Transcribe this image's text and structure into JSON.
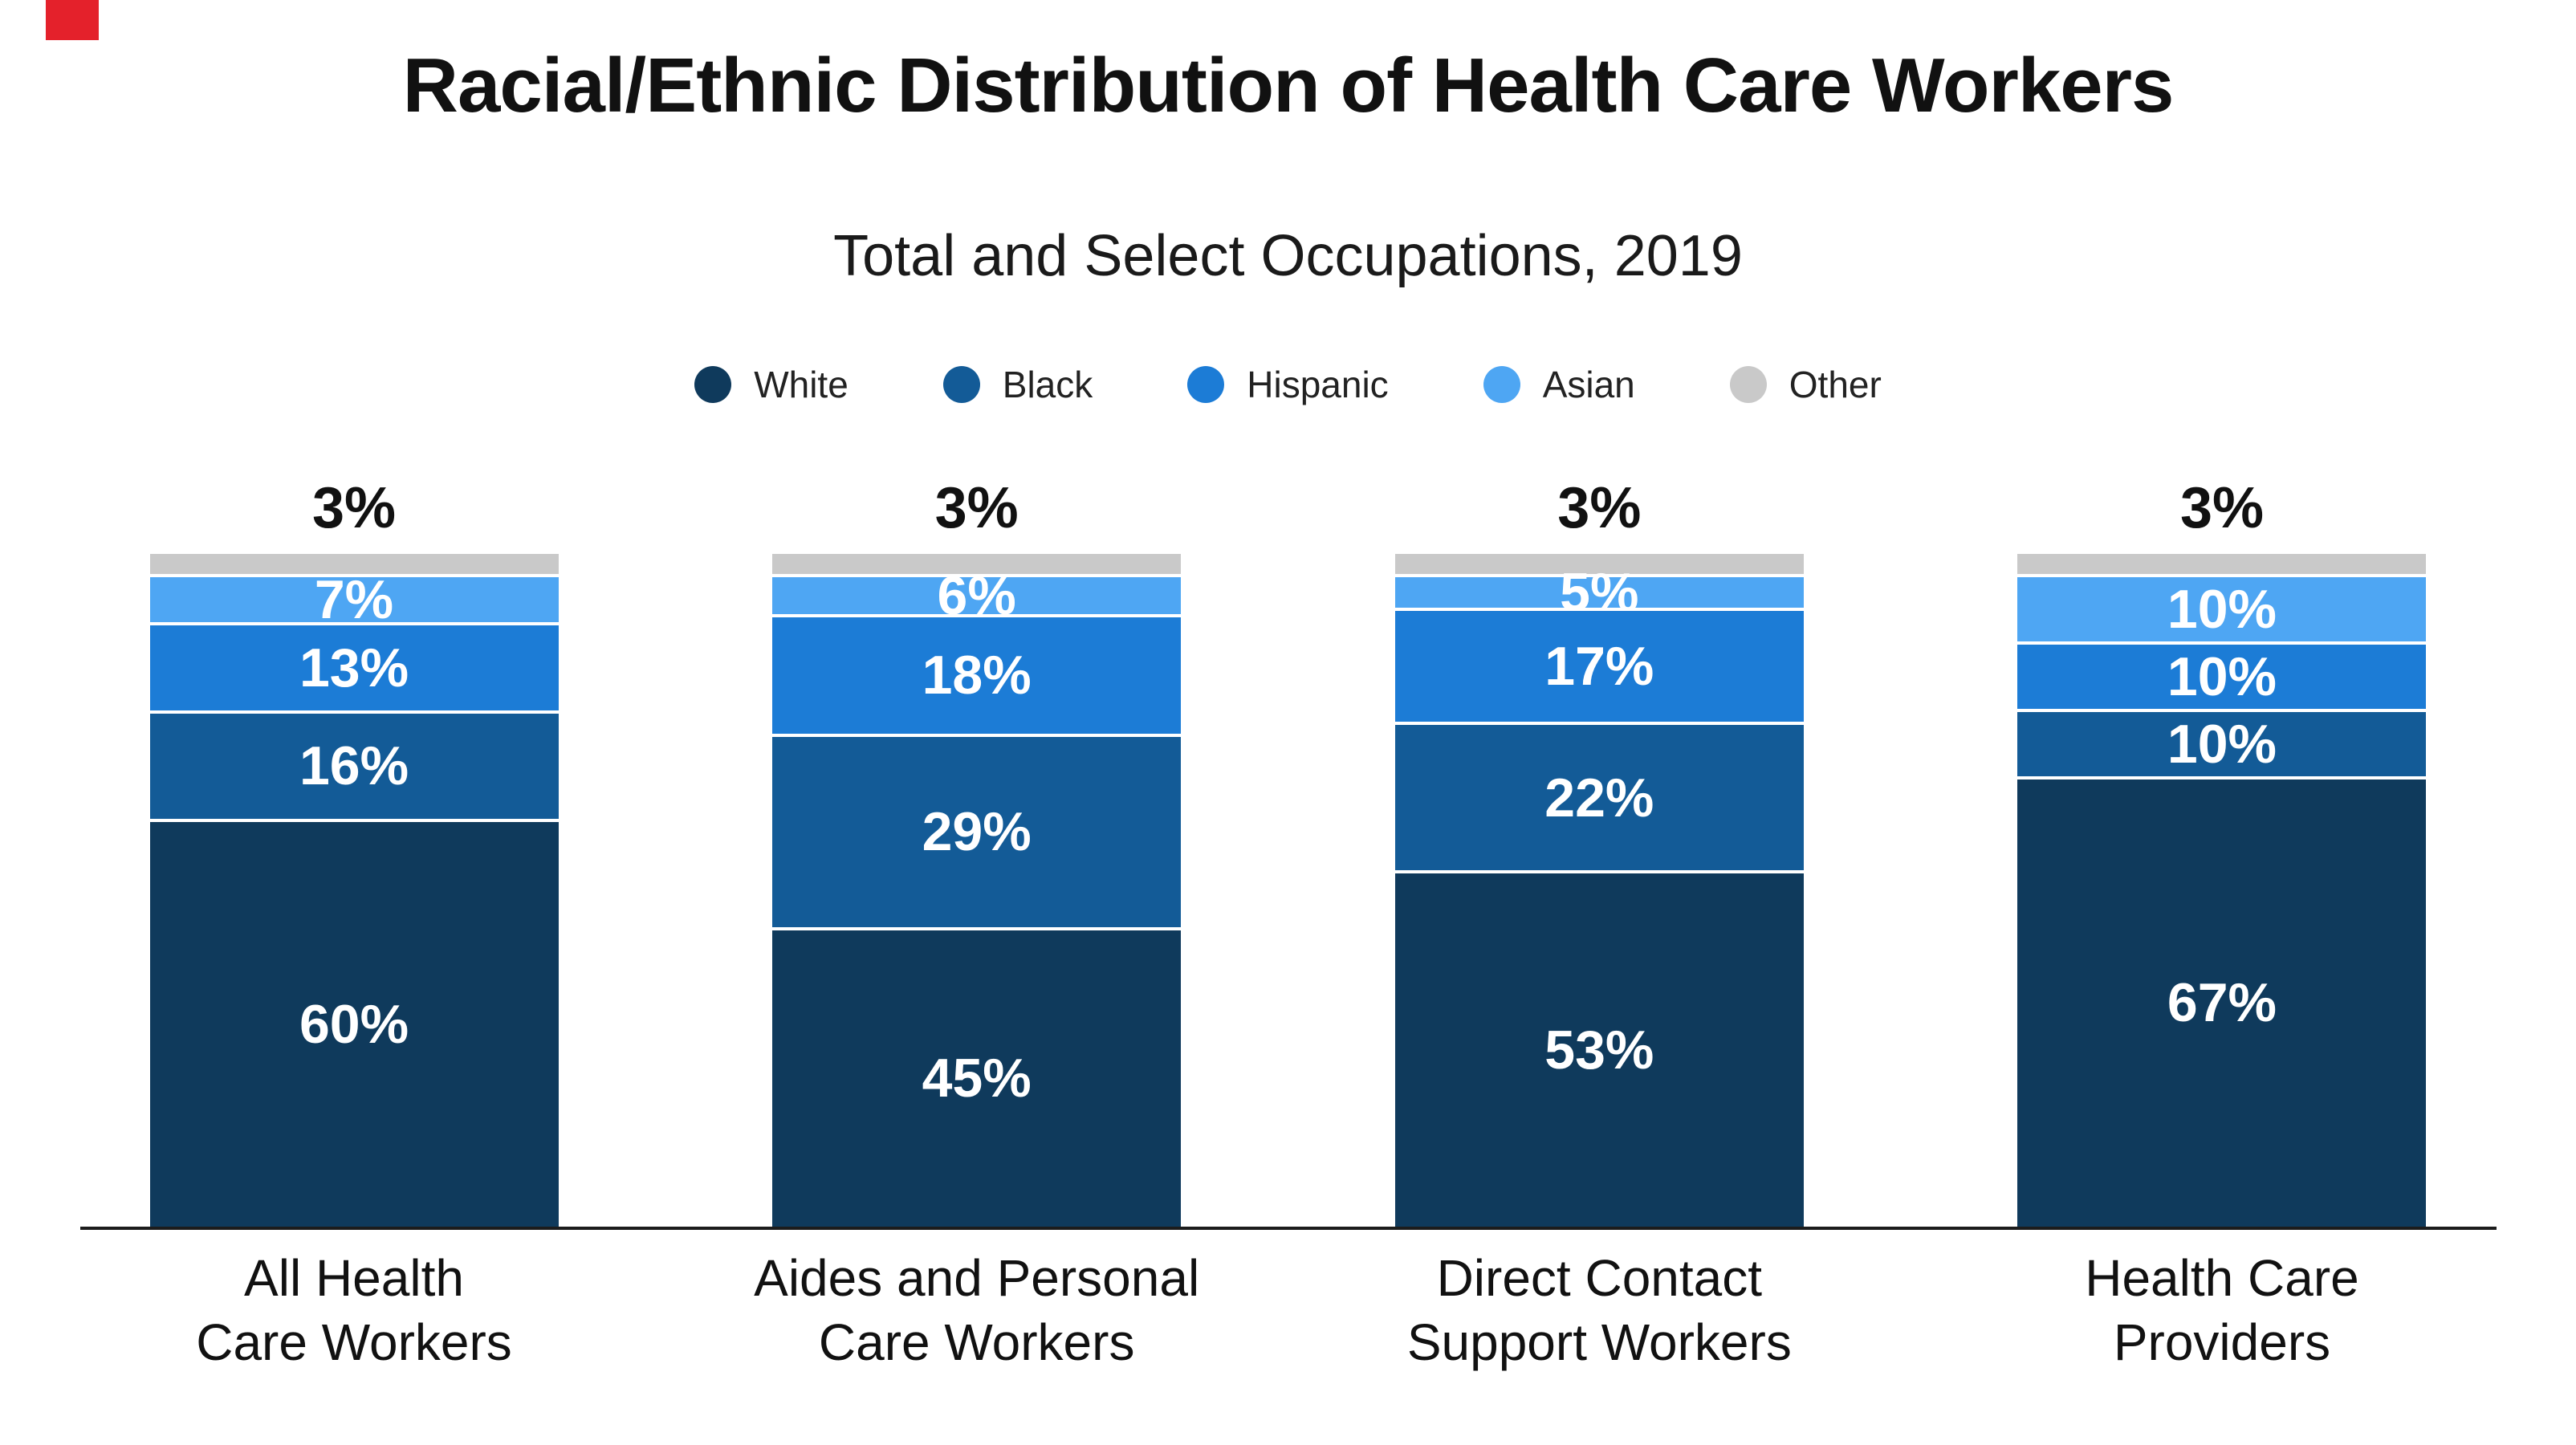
{
  "brand": {
    "mark_color": "#E4212B"
  },
  "header": {
    "title": "Racial/Ethnic Distribution of Health Care Workers",
    "subtitle": "Total and Select Occupations, 2019"
  },
  "chart_data": {
    "type": "bar",
    "stacked": true,
    "orientation": "vertical",
    "title": "Racial/Ethnic Distribution of Health Care Workers",
    "subtitle": "Total and Select Occupations, 2019",
    "legend_position": "top",
    "value_unit": "%",
    "ylim": [
      0,
      100
    ],
    "grid": false,
    "categories": [
      "All Health Care Workers",
      "Aides and Personal Care Workers",
      "Direct Contact Support Workers",
      "Health Care Providers"
    ],
    "categories_lines": [
      [
        "All Health",
        "Care Workers"
      ],
      [
        "Aides and Personal",
        "Care Workers"
      ],
      [
        "Direct Contact",
        "Support Workers"
      ],
      [
        "Health Care",
        "Providers"
      ]
    ],
    "series": [
      {
        "name": "White",
        "color": "#0F3A5C",
        "values": [
          60,
          45,
          53,
          67
        ],
        "label_placement": "inside"
      },
      {
        "name": "Black",
        "color": "#135B97",
        "values": [
          16,
          29,
          22,
          10
        ],
        "label_placement": "inside"
      },
      {
        "name": "Hispanic",
        "color": "#1C7CD6",
        "values": [
          13,
          18,
          17,
          10
        ],
        "label_placement": "inside"
      },
      {
        "name": "Asian",
        "color": "#4EA6F3",
        "values": [
          7,
          6,
          5,
          10
        ],
        "label_placement": "inside"
      },
      {
        "name": "Other",
        "color": "#C9C9C9",
        "values": [
          3,
          3,
          3,
          3
        ],
        "label_placement": "above"
      }
    ]
  }
}
